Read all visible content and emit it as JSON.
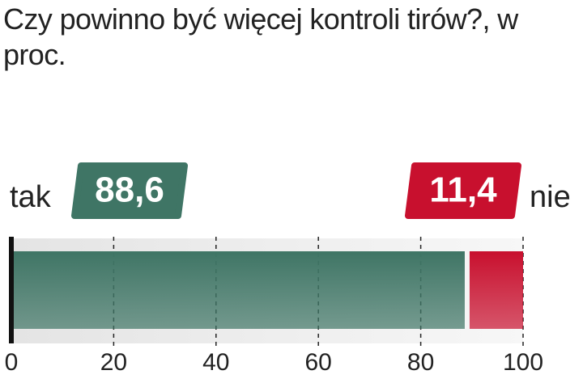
{
  "chart_data": {
    "type": "stacked-bar",
    "orientation": "horizontal",
    "title": "Czy powinno być więcej kontroli tirów?, w proc.",
    "series": [
      {
        "name": "tak",
        "color": "#3f7565",
        "values": [
          88.6
        ],
        "value_labels": [
          "88,6"
        ]
      },
      {
        "name": "nie",
        "color": "#c8102e",
        "values": [
          11.4
        ],
        "value_labels": [
          "11,4"
        ]
      }
    ],
    "xlim": [
      0,
      100
    ],
    "xticks": [
      0,
      20,
      40,
      60,
      80,
      100
    ],
    "grid": true
  }
}
